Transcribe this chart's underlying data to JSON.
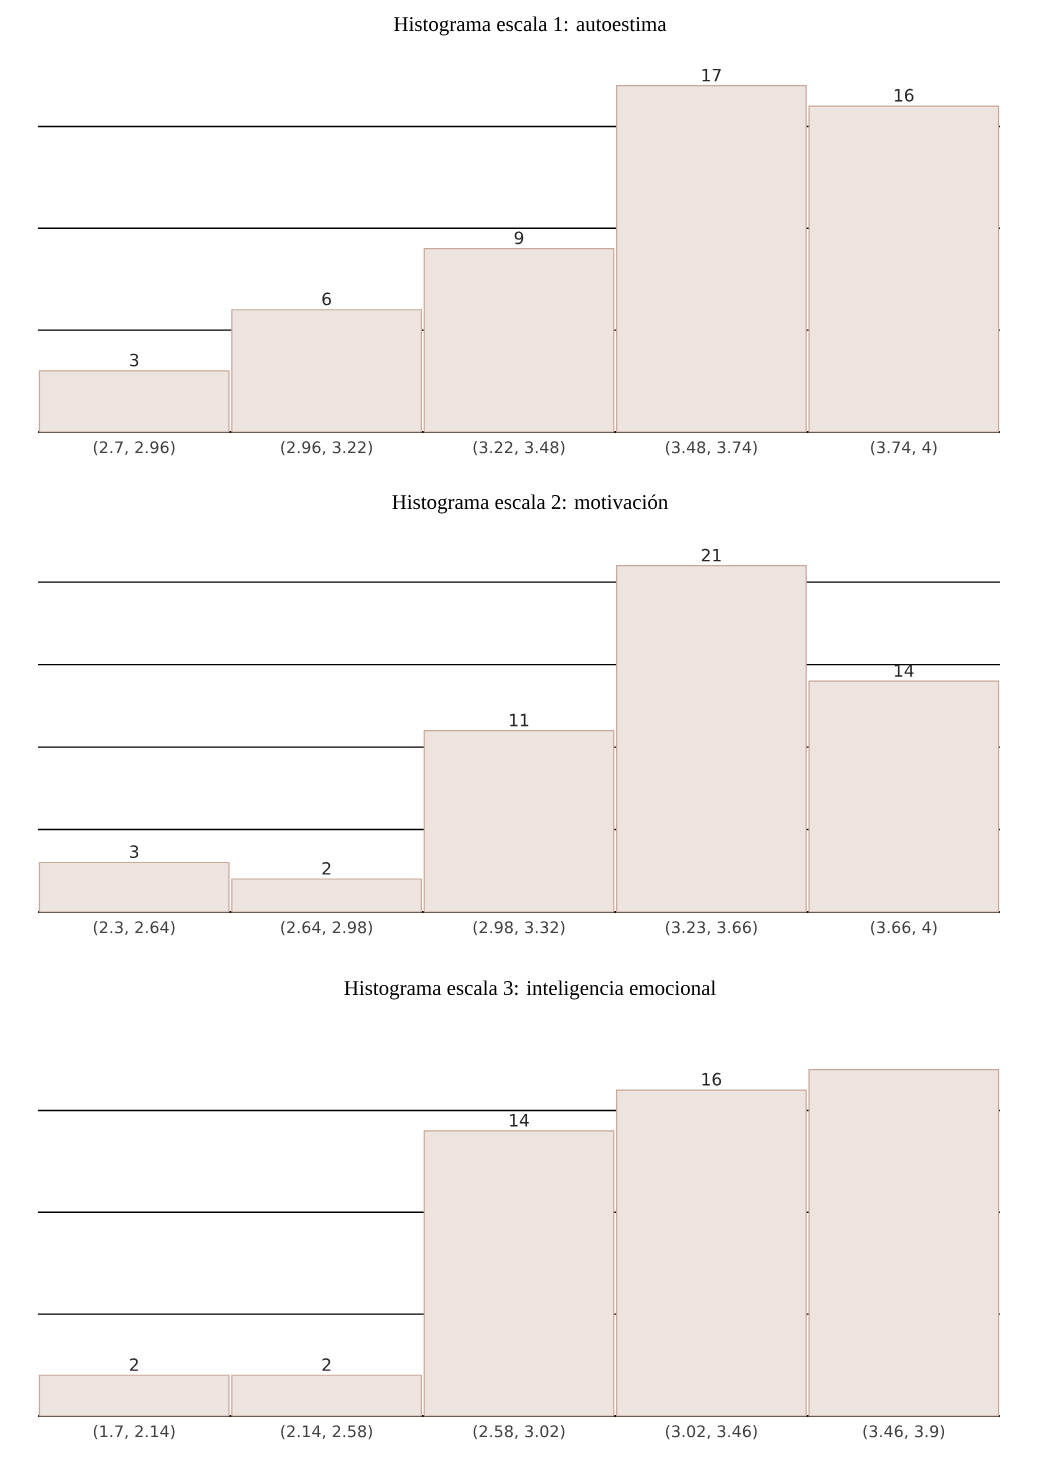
{
  "chart_data": [
    {
      "type": "bar",
      "title": "Histograma escala 1: autoestima",
      "categories": [
        "(2.7, 2.96)",
        "(2.96, 3.22)",
        "(3.22, 3.48)",
        "(3.48, 3.74)",
        "(3.74, 4)"
      ],
      "values": [
        3,
        6,
        9,
        17,
        16
      ],
      "color": "#ede3df",
      "grid": "y",
      "tick_labels": "x",
      "data_labels": true
    },
    {
      "type": "bar",
      "title": "Histograma escala 2: motivación",
      "categories": [
        "(2.3, 2.64)",
        "(2.64, 2.98)",
        "(2.98, 3.32)",
        "(3.23, 3.66)",
        "(3.66, 4)"
      ],
      "values": [
        3,
        2,
        11,
        21,
        14
      ],
      "color": "#ede3df",
      "grid": "y",
      "tick_labels": "x",
      "data_labels": true
    },
    {
      "type": "bar",
      "title": "Histograma escala 3: inteligencia emocional",
      "categories": [
        "(1.7, 2.14)",
        "(2.14, 2.58)",
        "(2.58, 3.02)",
        "(3.02, 3.46)",
        "(3.46, 3.9)"
      ],
      "values": [
        2,
        2,
        14,
        16,
        17
      ],
      "value_labels": [
        "2",
        "2",
        "14",
        "16",
        null
      ],
      "color": "#ede3df",
      "grid": "y",
      "tick_labels": "x"
    }
  ]
}
